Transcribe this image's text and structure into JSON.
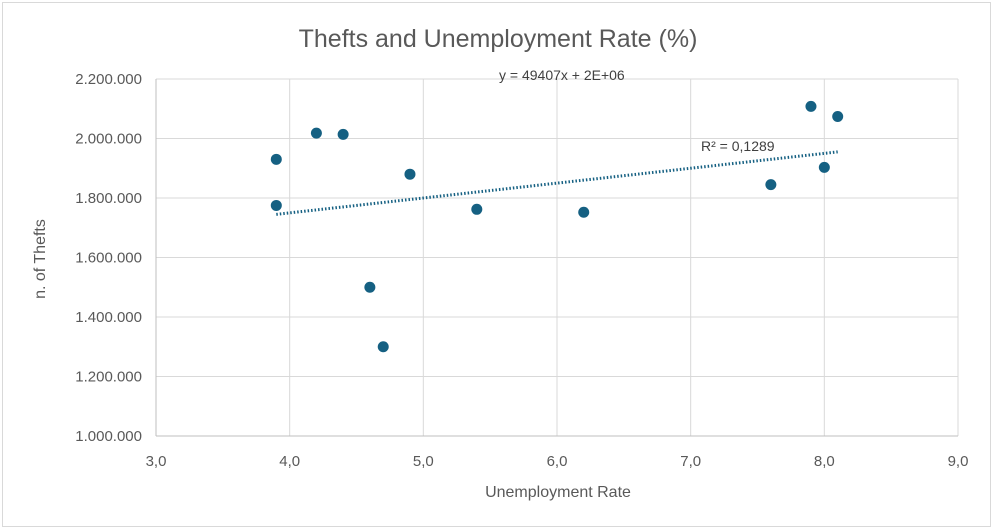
{
  "chart_data": {
    "type": "scatter",
    "title": "Thefts and Unemployment Rate (%)",
    "xlabel": "Unemployment Rate",
    "ylabel": "n. of Thefts",
    "xlim": [
      3.0,
      9.0
    ],
    "ylim": [
      1000000,
      2200000
    ],
    "x_ticks": [
      3.0,
      4.0,
      5.0,
      6.0,
      7.0,
      8.0,
      9.0
    ],
    "x_tick_labels": [
      "3,0",
      "4,0",
      "5,0",
      "6,0",
      "7,0",
      "8,0",
      "9,0"
    ],
    "y_ticks": [
      1000000,
      1200000,
      1400000,
      1600000,
      1800000,
      2000000,
      2200000
    ],
    "y_tick_labels": [
      "1.000.000",
      "1.200.000",
      "1.400.000",
      "1.600.000",
      "1.800.000",
      "2.000.000",
      "2.200.000"
    ],
    "grid": true,
    "series": [
      {
        "color": "#156082",
        "points": [
          {
            "x": 3.9,
            "y": 1930000
          },
          {
            "x": 3.9,
            "y": 1775000
          },
          {
            "x": 4.2,
            "y": 2018000
          },
          {
            "x": 4.4,
            "y": 2014000
          },
          {
            "x": 4.6,
            "y": 1500000
          },
          {
            "x": 4.7,
            "y": 1300000
          },
          {
            "x": 4.9,
            "y": 1880000
          },
          {
            "x": 5.4,
            "y": 1762000
          },
          {
            "x": 6.2,
            "y": 1752000
          },
          {
            "x": 7.6,
            "y": 1845000
          },
          {
            "x": 7.9,
            "y": 2108000
          },
          {
            "x": 8.0,
            "y": 1903000
          },
          {
            "x": 8.1,
            "y": 2074000
          }
        ]
      }
    ],
    "trendline": {
      "type": "linear",
      "color": "#156082",
      "x_range": [
        3.9,
        8.1
      ],
      "y_start": 1745000,
      "y_end": 1955000,
      "equation_label": "y = 49407x + 2E+06",
      "r2_label": "R² = 0,1289"
    }
  }
}
